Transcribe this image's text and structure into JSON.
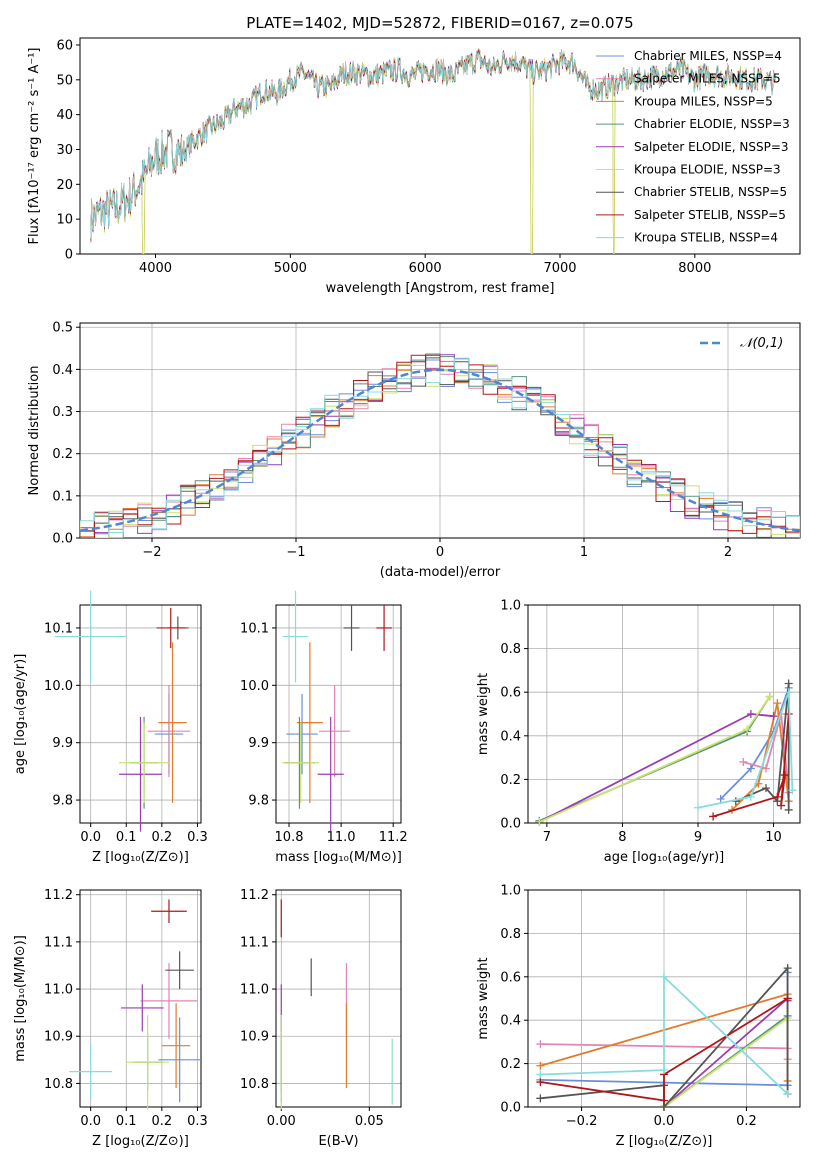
{
  "colors": [
    "#6a8fd8",
    "#e384b4",
    "#e07c2c",
    "#5a9080",
    "#9a3cb4",
    "#c8e46c",
    "#555555",
    "#b01818",
    "#88dcdc"
  ],
  "chart_data": [
    {
      "id": "spectrum",
      "type": "line",
      "title": "PLATE=1402, MJD=52872, FIBERID=0167, z=0.075",
      "xlabel": "wavelength [Angstrom, rest frame]",
      "ylabel": "Flux [fλ10⁻¹⁷ erg cm⁻² s⁻¹ A⁻¹]",
      "xlim": [
        3440,
        8780
      ],
      "ylim": [
        0,
        62
      ],
      "xticks": [
        4000,
        5000,
        6000,
        7000,
        8000
      ],
      "yticks": [
        0,
        10,
        20,
        30,
        40,
        50,
        60
      ],
      "legend_position": "upper right",
      "series_names": [
        "Chabrier MILES, N_SSP=4",
        "Salpeter MILES, N_SSP=5",
        "Kroupa MILES, N_SSP=5",
        "Chabrier ELODIE, N_SSP=3",
        "Salpeter ELODIE, N_SSP=3",
        "Kroupa ELODIE, N_SSP=3",
        "Chabrier STELIB, N_SSP=5",
        "Salpeter STELIB, N_SSP=5",
        "Kroupa STELIB, N_SSP=4"
      ],
      "legend": [
        {
          "label": "Chabrier MILES, NSSP=4"
        },
        {
          "label": "Salpeter MILES, NSSP=5"
        },
        {
          "label": "Kroupa MILES, NSSP=5"
        },
        {
          "label": "Chabrier ELODIE, NSSP=3"
        },
        {
          "label": "Salpeter ELODIE, NSSP=3"
        },
        {
          "label": "Kroupa ELODIE, NSSP=3"
        },
        {
          "label": "Chabrier STELIB, NSSP=5"
        },
        {
          "label": "Salpeter STELIB, NSSP=5"
        },
        {
          "label": "Kroupa STELIB, NSSP=4"
        }
      ],
      "continuum_x": [
        3520,
        3600,
        3700,
        3800,
        3900,
        4000,
        4100,
        4200,
        4300,
        4400,
        4500,
        4600,
        4700,
        4800,
        4900,
        5000,
        5100,
        5200,
        5300,
        5400,
        5500,
        5600,
        5700,
        5800,
        5900,
        6000,
        6100,
        6200,
        6300,
        6400,
        6500,
        6600,
        6700,
        6800,
        6900,
        7000,
        7100,
        7200,
        7300,
        7400,
        7500,
        7600,
        7700,
        7800,
        7900,
        8000,
        8100,
        8200,
        8300,
        8400,
        8500,
        8600
      ],
      "continuum_y": [
        10,
        12,
        13,
        16,
        21,
        28,
        30,
        29,
        33,
        36,
        38,
        42,
        43,
        47,
        46,
        50,
        52,
        48,
        48,
        52,
        52,
        51,
        52,
        53,
        51,
        53,
        53,
        51,
        54,
        56,
        53,
        56,
        55,
        52,
        53,
        55,
        55,
        48,
        47,
        49,
        50,
        50,
        51,
        52,
        53,
        50,
        52,
        51,
        51,
        50,
        50,
        49
      ]
    },
    {
      "id": "residuals",
      "type": "histogram",
      "xlabel": "(data-model)/error",
      "ylabel": "Normed distribution",
      "xlim": [
        -2.5,
        2.5
      ],
      "ylim": [
        0,
        0.51
      ],
      "xticks": [
        -2,
        -1,
        0,
        1,
        2
      ],
      "yticks": [
        0,
        0.1,
        0.2,
        0.3,
        0.4,
        0.5
      ],
      "reference_label": "𝒩(0,1)",
      "bin_width": 0.1
    },
    {
      "id": "z-age",
      "type": "errorbar",
      "xlabel": "Z [log₁₀(Z/Z⊙)]",
      "ylabel": "age  [log₁₀(age/yr)]",
      "xlim": [
        -0.03,
        0.31
      ],
      "ylim": [
        9.76,
        10.14
      ],
      "xticks": [
        0.0,
        0.1,
        0.2,
        0.3
      ],
      "xtick_labels": [
        "0.0",
        "0.1",
        "0.2",
        "0.3"
      ],
      "yticks": [
        9.8,
        9.9,
        10.0,
        10.1
      ],
      "points": [
        {
          "x": 0.22,
          "y": 9.915,
          "xerr": 0.04,
          "yerr": 0.07,
          "c": 0
        },
        {
          "x": 0.22,
          "y": 9.92,
          "xerr": 0.06,
          "yerr": 0.08,
          "c": 1
        },
        {
          "x": 0.23,
          "y": 9.935,
          "xerr": 0.04,
          "yerr": 0.14,
          "c": 2
        },
        {
          "x": 0.15,
          "y": 9.865,
          "xerr": 0.04,
          "yerr": 0.08,
          "c": 3
        },
        {
          "x": 0.14,
          "y": 9.845,
          "xerr": 0.06,
          "yerr": 0.1,
          "c": 4
        },
        {
          "x": 0.15,
          "y": 9.865,
          "xerr": 0.07,
          "yerr": 0.07,
          "c": 5
        },
        {
          "x": 0.245,
          "y": 10.1,
          "xerr": 0.03,
          "yerr": 0.02,
          "c": 6
        },
        {
          "x": 0.225,
          "y": 10.1,
          "xerr": 0.04,
          "yerr": 0.035,
          "c": 7
        },
        {
          "x": 0.0,
          "y": 10.085,
          "xerr": 0.1,
          "yerr": 0.08,
          "c": 8
        }
      ]
    },
    {
      "id": "mass-age",
      "type": "errorbar",
      "xlabel": "mass [log₁₀(M/M⊙)]",
      "ylabel": "",
      "xlim": [
        10.75,
        11.23
      ],
      "ylim": [
        9.76,
        10.14
      ],
      "xticks": [
        10.8,
        11.0,
        11.2
      ],
      "xtick_labels": [
        "10.8",
        "11.0",
        "11.2"
      ],
      "yticks": [
        9.8,
        9.9,
        10.0,
        10.1
      ],
      "points": [
        {
          "x": 10.85,
          "y": 9.915,
          "xerr": 0.06,
          "yerr": 0.07,
          "c": 0
        },
        {
          "x": 10.975,
          "y": 9.92,
          "xerr": 0.06,
          "yerr": 0.08,
          "c": 1
        },
        {
          "x": 10.88,
          "y": 9.935,
          "xerr": 0.05,
          "yerr": 0.14,
          "c": 2
        },
        {
          "x": 10.84,
          "y": 9.865,
          "xerr": 0.06,
          "yerr": 0.08,
          "c": 3
        },
        {
          "x": 10.96,
          "y": 9.845,
          "xerr": 0.05,
          "yerr": 0.1,
          "c": 4
        },
        {
          "x": 10.845,
          "y": 9.865,
          "xerr": 0.07,
          "yerr": 0.07,
          "c": 5
        },
        {
          "x": 11.04,
          "y": 10.1,
          "xerr": 0.03,
          "yerr": 0.04,
          "c": 6
        },
        {
          "x": 11.165,
          "y": 10.1,
          "xerr": 0.03,
          "yerr": 0.04,
          "c": 7
        },
        {
          "x": 10.825,
          "y": 10.085,
          "xerr": 0.05,
          "yerr": 0.08,
          "c": 8
        }
      ]
    },
    {
      "id": "age-weight",
      "type": "line",
      "xlabel": "age  [log₁₀(age/yr)]",
      "ylabel": "mass weight",
      "xlim": [
        6.75,
        10.35
      ],
      "ylim": [
        0,
        1
      ],
      "xticks": [
        7,
        8,
        9,
        10
      ],
      "xtick_labels": [
        "7",
        "8",
        "9",
        "10"
      ],
      "yticks": [
        0,
        0.2,
        0.4,
        0.6,
        0.8,
        1.0
      ],
      "series": [
        {
          "c": 0,
          "x": [
            9.3,
            9.7,
            10.0,
            10.2
          ],
          "y": [
            0.11,
            0.25,
            0.42,
            0.62
          ]
        },
        {
          "c": 1,
          "x": [
            9.6,
            9.9,
            10.1,
            10.2
          ],
          "y": [
            0.28,
            0.25,
            0.5,
            0.14
          ]
        },
        {
          "c": 2,
          "x": [
            9.45,
            9.8,
            10.05,
            10.2
          ],
          "y": [
            0.06,
            0.18,
            0.55,
            0.1
          ]
        },
        {
          "c": 3,
          "x": [
            6.9,
            9.65,
            9.95
          ],
          "y": [
            0.01,
            0.42,
            0.58
          ]
        },
        {
          "c": 4,
          "x": [
            6.9,
            9.7,
            10.0
          ],
          "y": [
            0.005,
            0.5,
            0.49
          ]
        },
        {
          "c": 5,
          "x": [
            6.9,
            9.65,
            9.95
          ],
          "y": [
            0.005,
            0.43,
            0.58
          ]
        },
        {
          "c": 6,
          "x": [
            9.5,
            9.9,
            10.05,
            10.2,
            10.2
          ],
          "y": [
            0.1,
            0.16,
            0.1,
            0.64,
            0.06
          ]
        },
        {
          "c": 7,
          "x": [
            9.2,
            10.05,
            10.15,
            10.1,
            10.2
          ],
          "y": [
            0.03,
            0.12,
            0.22,
            0.08,
            0.5
          ]
        },
        {
          "c": 8,
          "x": [
            9.0,
            9.7,
            10.2,
            10.25
          ],
          "y": [
            0.07,
            0.12,
            0.6,
            0.15
          ]
        }
      ]
    },
    {
      "id": "z-mass",
      "type": "errorbar",
      "xlabel": "Z [log₁₀(Z/Z⊙)]",
      "ylabel": "mass [log₁₀(M/M⊙)]",
      "xlim": [
        -0.03,
        0.31
      ],
      "ylim": [
        10.75,
        11.21
      ],
      "xticks": [
        0.0,
        0.1,
        0.2,
        0.3
      ],
      "xtick_labels": [
        "0.0",
        "0.1",
        "0.2",
        "0.3"
      ],
      "yticks": [
        10.8,
        10.9,
        11.0,
        11.1,
        11.2
      ],
      "points": [
        {
          "x": 0.25,
          "y": 10.85,
          "xerr": 0.06,
          "yerr": 0.09,
          "c": 0
        },
        {
          "x": 0.22,
          "y": 10.975,
          "xerr": 0.08,
          "yerr": 0.08,
          "c": 1
        },
        {
          "x": 0.24,
          "y": 10.88,
          "xerr": 0.04,
          "yerr": 0.09,
          "c": 2
        },
        {
          "x": 0.16,
          "y": 10.845,
          "xerr": 0.04,
          "yerr": 0.06,
          "c": 3
        },
        {
          "x": 0.145,
          "y": 10.96,
          "xerr": 0.06,
          "yerr": 0.05,
          "c": 4
        },
        {
          "x": 0.16,
          "y": 10.845,
          "xerr": 0.06,
          "yerr": 0.1,
          "c": 5
        },
        {
          "x": 0.25,
          "y": 11.04,
          "xerr": 0.04,
          "yerr": 0.04,
          "c": 6
        },
        {
          "x": 0.22,
          "y": 11.165,
          "xerr": 0.05,
          "yerr": 0.025,
          "c": 7
        },
        {
          "x": 0.0,
          "y": 10.825,
          "xerr": 0.06,
          "yerr": 0.06,
          "c": 8
        }
      ]
    },
    {
      "id": "ebv-mass",
      "type": "errorbar",
      "xlabel": "E(B-V)",
      "ylabel": "",
      "xlim": [
        -0.003,
        0.068
      ],
      "ylim": [
        10.75,
        11.21
      ],
      "xticks": [
        0.0,
        0.05
      ],
      "xtick_labels": [
        "0.00",
        "0.05"
      ],
      "yticks": [
        10.8,
        10.9,
        11.0,
        11.1,
        11.2
      ],
      "points": [
        {
          "x": 0.0,
          "y": 10.85,
          "xerr": 0,
          "yerr": 0.09,
          "c": 0
        },
        {
          "x": 0.037,
          "y": 10.975,
          "xerr": 0,
          "yerr": 0.08,
          "c": 1
        },
        {
          "x": 0.037,
          "y": 10.88,
          "xerr": 0,
          "yerr": 0.09,
          "c": 2
        },
        {
          "x": 0.0,
          "y": 10.845,
          "xerr": 0,
          "yerr": 0.06,
          "c": 3
        },
        {
          "x": 0.0,
          "y": 10.96,
          "xerr": 0,
          "yerr": 0.05,
          "c": 4
        },
        {
          "x": 0.0,
          "y": 10.845,
          "xerr": 0,
          "yerr": 0.1,
          "c": 5
        },
        {
          "x": 0.017,
          "y": 11.025,
          "xerr": 0,
          "yerr": 0.04,
          "c": 6
        },
        {
          "x": 0.0,
          "y": 11.15,
          "xerr": 0,
          "yerr": 0.04,
          "c": 7
        },
        {
          "x": 0.063,
          "y": 10.825,
          "xerr": 0,
          "yerr": 0.07,
          "c": 8
        }
      ]
    },
    {
      "id": "z-weight",
      "type": "line",
      "xlabel": "Z [log₁₀(Z/Z⊙)]",
      "ylabel": "mass weight",
      "xlim": [
        -0.33,
        0.33
      ],
      "ylim": [
        0,
        1
      ],
      "xticks": [
        -0.2,
        0.0,
        0.2
      ],
      "xtick_labels": [
        "−0.2",
        "0.0",
        "0.2"
      ],
      "yticks": [
        0,
        0.2,
        0.4,
        0.6,
        0.8,
        1.0
      ],
      "series": [
        {
          "c": 0,
          "x": [
            -0.3,
            0.3,
            0.3
          ],
          "y": [
            0.125,
            0.1,
            0.62
          ]
        },
        {
          "c": 1,
          "x": [
            -0.3,
            0.3,
            0.3
          ],
          "y": [
            0.29,
            0.27,
            0.22
          ]
        },
        {
          "c": 2,
          "x": [
            -0.3,
            0.3,
            0.3
          ],
          "y": [
            0.19,
            0.52,
            0.12
          ]
        },
        {
          "c": 3,
          "x": [
            0.0,
            0.0,
            0.3
          ],
          "y": [
            0.1,
            0.0,
            0.42
          ]
        },
        {
          "c": 4,
          "x": [
            0.0,
            0.3,
            0.3
          ],
          "y": [
            0.0,
            0.5,
            0.49
          ]
        },
        {
          "c": 5,
          "x": [
            0.0,
            0.0,
            0.3
          ],
          "y": [
            0.005,
            0.0,
            0.41
          ]
        },
        {
          "c": 6,
          "x": [
            -0.3,
            0.0,
            0.0,
            0.3,
            0.3
          ],
          "y": [
            0.04,
            0.1,
            0.0,
            0.64,
            0.06
          ]
        },
        {
          "c": 7,
          "x": [
            -0.3,
            0.0,
            0.0,
            0.3,
            0.3
          ],
          "y": [
            0.115,
            0.03,
            0.15,
            0.5,
            0.5
          ]
        },
        {
          "c": 8,
          "x": [
            -0.3,
            0.0,
            0.0,
            0.3
          ],
          "y": [
            0.15,
            0.17,
            0.6,
            0.06
          ]
        }
      ]
    }
  ]
}
